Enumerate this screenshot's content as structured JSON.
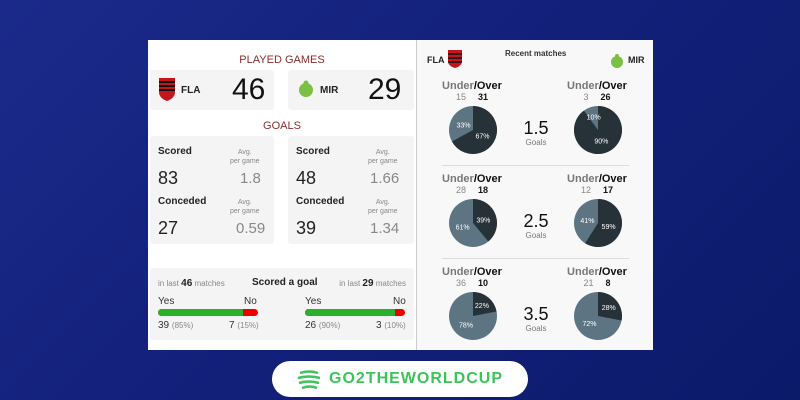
{
  "teams": {
    "home": {
      "abbr": "FLA",
      "color": "#c4161c"
    },
    "away": {
      "abbr": "MIR",
      "color": "#7bc043"
    }
  },
  "played": {
    "title": "PLAYED GAMES",
    "home": "46",
    "away": "29"
  },
  "goals": {
    "title": "GOALS",
    "scored_label": "Scored",
    "conceded_label": "Conceded",
    "avg_label1": "Avg.",
    "avg_label2": "per game",
    "home": {
      "scored": "83",
      "scored_avg": "1.8",
      "conceded": "27",
      "conceded_avg": "0.59"
    },
    "away": {
      "scored": "48",
      "scored_avg": "1.66",
      "conceded": "39",
      "conceded_avg": "1.34"
    }
  },
  "scored_goal": {
    "title": "Scored a goal",
    "in_last": "in last",
    "matches": "matches",
    "yes": "Yes",
    "no": "No",
    "home": {
      "n": "46",
      "yes": "39",
      "yes_pct": "(85%)",
      "no": "7",
      "no_pct": "(15%)",
      "yes_fraction": 0.85
    },
    "away": {
      "n": "29",
      "yes": "26",
      "yes_pct": "(90%)",
      "no": "3",
      "no_pct": "(10%)",
      "yes_fraction": 0.9
    }
  },
  "recent": {
    "title": "Recent matches",
    "under": "Under",
    "over": "Over",
    "goals_label": "Goals",
    "colors": {
      "under": "#5d7583",
      "over": "#263238"
    },
    "rows": [
      {
        "line": "1.5",
        "home": {
          "under": "15",
          "over": "31",
          "under_pct": "33%",
          "over_pct": "67%",
          "over_frac": 0.67
        },
        "away": {
          "under": "3",
          "over": "26",
          "under_pct": "10%",
          "over_pct": "90%",
          "over_frac": 0.9
        }
      },
      {
        "line": "2.5",
        "home": {
          "under": "28",
          "over": "18",
          "under_pct": "61%",
          "over_pct": "39%",
          "over_frac": 0.39
        },
        "away": {
          "under": "12",
          "over": "17",
          "under_pct": "41%",
          "over_pct": "59%",
          "over_frac": 0.59
        }
      },
      {
        "line": "3.5",
        "home": {
          "under": "36",
          "over": "10",
          "under_pct": "78%",
          "over_pct": "22%",
          "over_frac": 0.22
        },
        "away": {
          "under": "21",
          "over": "8",
          "under_pct": "72%",
          "over_pct": "28%",
          "over_frac": 0.28
        }
      }
    ]
  },
  "brand": {
    "name": "GO2THEWORLDCUP",
    "color": "#3cc45a"
  }
}
